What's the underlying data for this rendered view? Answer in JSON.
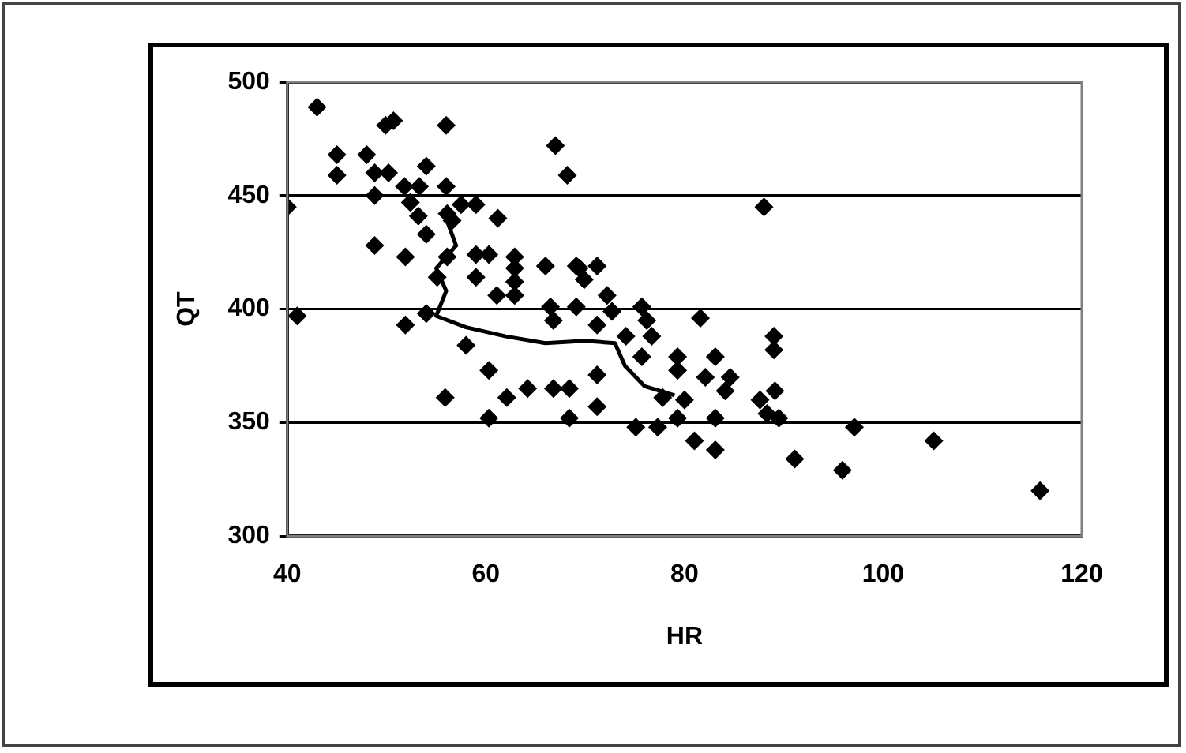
{
  "chart_data": {
    "type": "scatter",
    "xlabel": "HR",
    "ylabel": "QT",
    "xlim": [
      40,
      120
    ],
    "ylim": [
      300,
      500
    ],
    "xticks": [
      40,
      60,
      80,
      100,
      120
    ],
    "yticks": [
      300,
      350,
      400,
      450,
      500
    ],
    "grid": "y",
    "legend": false,
    "series": [
      {
        "marker": "diamond",
        "color": "#000000",
        "x": [
          43,
          50.7,
          49.9,
          56,
          45,
          48,
          54,
          45,
          48.8,
          50.2,
          51.8,
          53.3,
          56,
          48.8,
          52.4,
          53.2,
          40,
          56.1,
          57.5,
          59,
          61.2,
          54,
          56.6,
          48.8,
          51.9,
          56.1,
          59,
          60.3,
          62.9,
          62.9,
          66,
          69.1,
          59,
          62.9,
          55.1,
          61.1,
          62.9,
          41,
          51.9,
          54,
          66.5,
          69.1,
          60.3,
          66.8,
          55.9,
          62.1,
          64.2,
          66.8,
          68.4,
          60.3,
          68.4,
          58,
          67,
          68.2,
          88,
          69.4,
          71.2,
          69.9,
          72.2,
          72.7,
          75.7,
          76.2,
          81.6,
          71.2,
          74.1,
          76.7,
          89,
          89,
          75.7,
          79.3,
          83.1,
          79.3,
          82.1,
          84.6,
          84.1,
          71.2,
          77.8,
          80,
          87.6,
          89.1,
          88.3,
          89.5,
          71.2,
          75.1,
          77.3,
          79.3,
          83.1,
          81,
          83.1,
          91.1,
          95.9,
          97.1,
          105.1,
          115.8
        ],
        "values": [
          489,
          483,
          481,
          481,
          468,
          468,
          463,
          459,
          460,
          460,
          454,
          454,
          454,
          450,
          447,
          441,
          445,
          442,
          446,
          446,
          440,
          433,
          439,
          428,
          423,
          423,
          424,
          424,
          423,
          418,
          419,
          419,
          414,
          412,
          414,
          406,
          406,
          397,
          393,
          398,
          401,
          401,
          373,
          395,
          361,
          361,
          365,
          365,
          365,
          352,
          352,
          384,
          472,
          459,
          445,
          418,
          419,
          413,
          406,
          399,
          401,
          395,
          396,
          393,
          388,
          388,
          388,
          382,
          379,
          379,
          379,
          373,
          370,
          370,
          364,
          371,
          361,
          360,
          360,
          364,
          354,
          352,
          357,
          348,
          348,
          352,
          352,
          342,
          338,
          334,
          329,
          348,
          342,
          320
        ]
      },
      {
        "type": "line",
        "marker": "none",
        "line_style": "solid",
        "color": "#000000",
        "x": [
          56,
          57,
          55,
          56,
          55,
          58,
          62,
          66,
          70,
          73,
          74,
          76,
          79
        ],
        "values": [
          440,
          428,
          418,
          408,
          397,
          392,
          388,
          385,
          386,
          385,
          375,
          366,
          362
        ]
      }
    ]
  }
}
